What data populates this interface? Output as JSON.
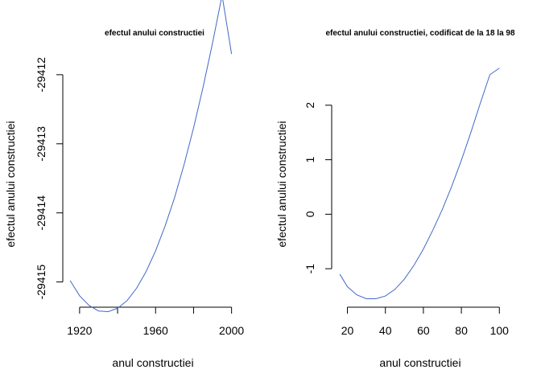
{
  "chart_data": [
    {
      "type": "line",
      "title": "efectul anului constructiei",
      "xlabel": "anul constructiei",
      "ylabel": "efectul anului constructiei",
      "xlim": [
        1912,
        2001
      ],
      "ylim": [
        -29415.4,
        -29411.85
      ],
      "xticks": [
        1920,
        1960,
        2000
      ],
      "xticks_minor": [
        1940,
        1980
      ],
      "yticks": [
        -29415,
        -29414,
        -29413,
        -29412
      ],
      "color": "#4169c8",
      "series": [
        {
          "x": [
            1915,
            1920,
            1925,
            1930,
            1935,
            1940,
            1945,
            1950,
            1955,
            1960,
            1965,
            1970,
            1975,
            1980,
            1985,
            1990,
            1995,
            2000
          ],
          "values": [
            -29414.98,
            -29415.2,
            -29415.34,
            -29415.42,
            -29415.43,
            -29415.38,
            -29415.27,
            -29415.09,
            -29414.85,
            -29414.55,
            -29414.19,
            -29413.78,
            -29413.3,
            -29412.77,
            -29412.18,
            -29411.54,
            -29410.85,
            -29411.7
          ]
        }
      ]
    },
    {
      "type": "line",
      "title": "efectul anului constructiei, codificat de la 18 la 98",
      "xlabel": "anul constructiei",
      "ylabel": "efectul anului constructiei",
      "xlim": [
        13,
        102
      ],
      "ylim": [
        -1.75,
        2.75
      ],
      "xticks": [
        20,
        40,
        60,
        80,
        100
      ],
      "yticks": [
        -1,
        0,
        1,
        2
      ],
      "color": "#4169c8",
      "series": [
        {
          "x": [
            16,
            20,
            25,
            30,
            35,
            40,
            45,
            50,
            55,
            60,
            65,
            70,
            75,
            80,
            85,
            90,
            95,
            100
          ],
          "values": [
            -1.1,
            -1.33,
            -1.48,
            -1.55,
            -1.55,
            -1.5,
            -1.38,
            -1.19,
            -0.94,
            -0.64,
            -0.29,
            0.09,
            0.52,
            0.99,
            1.5,
            2.04,
            2.56,
            2.68
          ]
        }
      ]
    }
  ]
}
